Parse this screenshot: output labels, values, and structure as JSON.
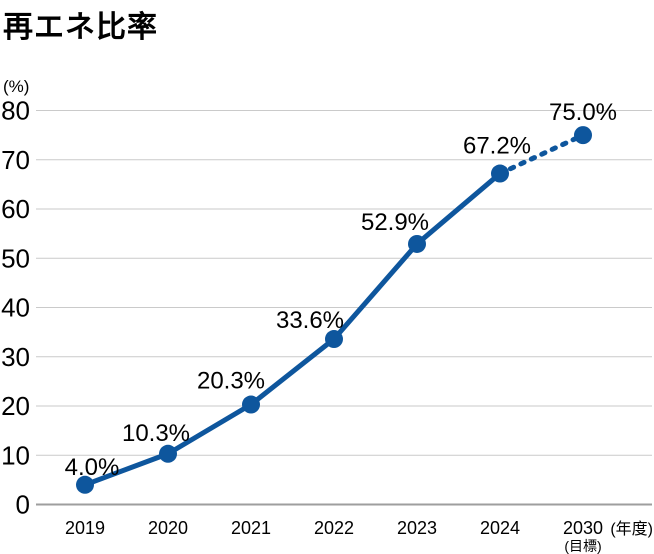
{
  "header": {
    "title": "再エネ比率"
  },
  "chart_data": {
    "type": "line",
    "title": "再エネ比率",
    "unit_label": "(%)",
    "x_axis_unit_label": "(年度)",
    "categories": [
      "2019",
      "2020",
      "2021",
      "2022",
      "2023",
      "2024",
      "2030"
    ],
    "category_sublabels": [
      "",
      "",
      "",
      "",
      "",
      "",
      "(目標)"
    ],
    "values": [
      4.0,
      10.3,
      20.3,
      33.6,
      52.9,
      67.2,
      75.0
    ],
    "labels": [
      "4.0%",
      "10.3%",
      "20.3%",
      "33.6%",
      "52.9%",
      "67.2%",
      "75.0%"
    ],
    "y_ticks": [
      0,
      10,
      20,
      30,
      40,
      50,
      60,
      70,
      80
    ],
    "ylim": [
      0,
      80
    ],
    "grid": true,
    "legend": false,
    "dashed_segment_start_index": 5,
    "line_color": "#0e569d",
    "grid_color": "#cacaca",
    "axis_line_color": "#9e9e9e",
    "text_color": "#000000"
  }
}
